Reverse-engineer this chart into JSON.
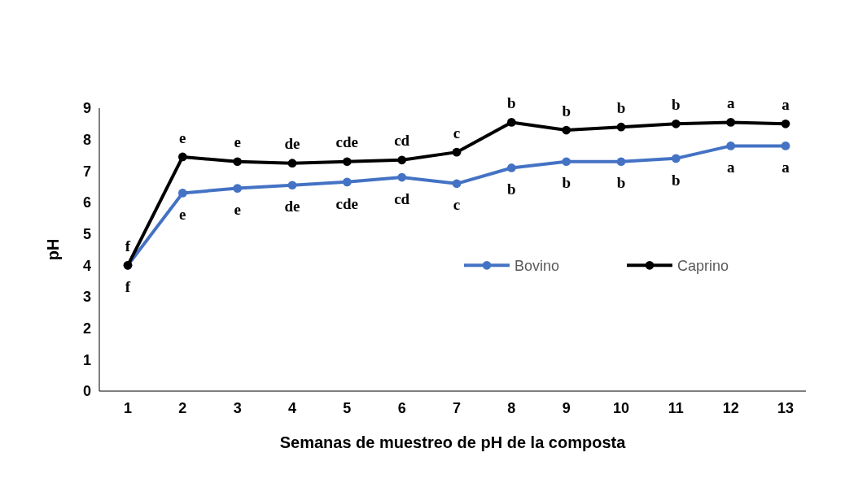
{
  "chart_data": {
    "type": "line",
    "xlabel": "Semanas de muestreo de pH de la composta",
    "ylabel": "pH",
    "categories": [
      "1",
      "2",
      "3",
      "4",
      "5",
      "6",
      "7",
      "8",
      "9",
      "10",
      "11",
      "12",
      "13"
    ],
    "ylim": [
      0,
      9
    ],
    "yticks": [
      0,
      1,
      2,
      3,
      4,
      5,
      6,
      7,
      8,
      9
    ],
    "grid": false,
    "legend": "right",
    "marker": "circle",
    "line_style": "solid",
    "series": [
      {
        "name": "Bovino",
        "color": "#4472c4",
        "values": [
          4.0,
          6.3,
          6.45,
          6.55,
          6.65,
          6.8,
          6.6,
          7.1,
          7.3,
          7.3,
          7.4,
          7.8,
          7.8
        ]
      },
      {
        "name": "Caprino",
        "color": "#000000",
        "values": [
          4.0,
          7.45,
          7.3,
          7.25,
          7.3,
          7.35,
          7.6,
          8.55,
          8.3,
          8.4,
          8.5,
          8.55,
          8.5
        ]
      }
    ],
    "annotations": [
      {
        "text": "f",
        "x": "1",
        "y": 4.0
      },
      {
        "text": "f",
        "x": "1",
        "y": 4.0
      },
      {
        "text": "e",
        "x": "2",
        "y": 7.45
      },
      {
        "text": "e",
        "x": "2",
        "y": 6.3
      },
      {
        "text": "e",
        "x": "3",
        "y": 7.3
      },
      {
        "text": "e",
        "x": "3",
        "y": 6.45
      },
      {
        "text": "de",
        "x": "4",
        "y": 7.25
      },
      {
        "text": "de",
        "x": "4",
        "y": 6.55
      },
      {
        "text": "cde",
        "x": "5",
        "y": 7.3
      },
      {
        "text": "cde",
        "x": "5",
        "y": 6.65
      },
      {
        "text": "cd",
        "x": "6",
        "y": 7.35
      },
      {
        "text": "cd",
        "x": "6",
        "y": 6.8
      },
      {
        "text": "c",
        "x": "7",
        "y": 7.6
      },
      {
        "text": "c",
        "x": "7",
        "y": 6.6
      },
      {
        "text": "b",
        "x": "8",
        "y": 8.55
      },
      {
        "text": "b",
        "x": "8",
        "y": 7.1
      },
      {
        "text": "b",
        "x": "9",
        "y": 8.3
      },
      {
        "text": "b",
        "x": "9",
        "y": 7.3
      },
      {
        "text": "b",
        "x": "10",
        "y": 8.4
      },
      {
        "text": "b",
        "x": "10",
        "y": 7.3
      },
      {
        "text": "b",
        "x": "11",
        "y": 8.5
      },
      {
        "text": "b",
        "x": "11",
        "y": 7.4
      },
      {
        "text": "a",
        "x": "12",
        "y": 8.55
      },
      {
        "text": "a",
        "x": "12",
        "y": 7.8
      },
      {
        "text": "a",
        "x": "13",
        "y": 8.5
      },
      {
        "text": "a",
        "x": "13",
        "y": 7.8
      }
    ]
  }
}
